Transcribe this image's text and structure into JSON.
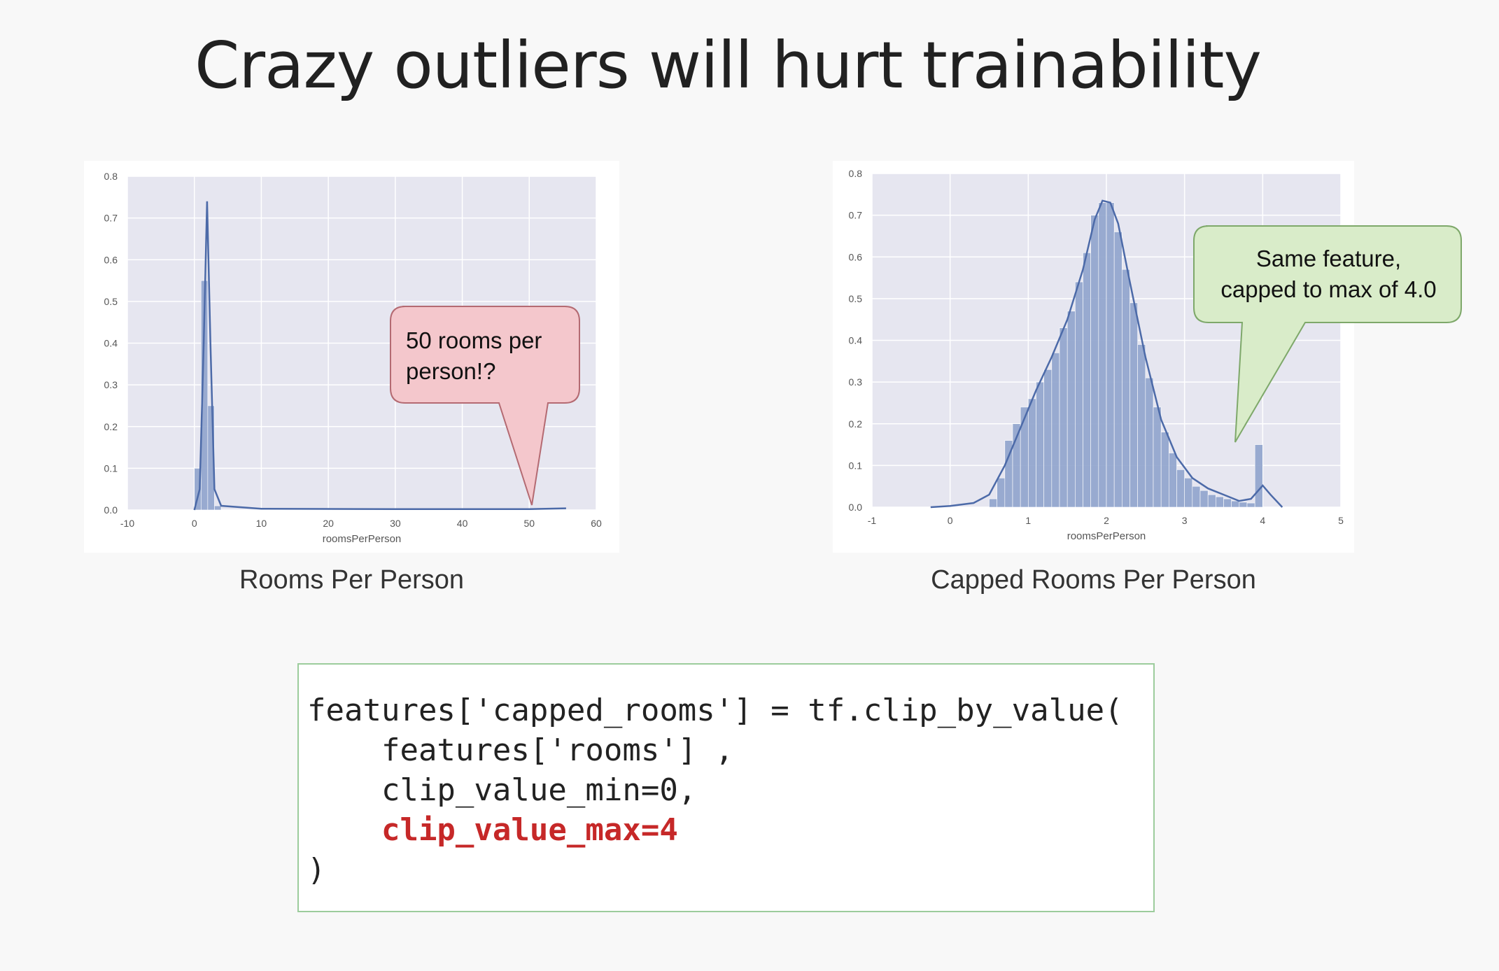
{
  "slide": {
    "title": "Crazy outliers will hurt trainability"
  },
  "charts": {
    "left": {
      "caption": "Rooms Per Person",
      "callout": [
        "50 rooms per",
        "person!?"
      ],
      "callout_color": "#f4c7cc"
    },
    "right": {
      "caption": "Capped Rooms Per Person",
      "callout": [
        "Same feature,",
        "capped to max of 4.0"
      ],
      "callout_color": "#d9ecc9"
    }
  },
  "code": {
    "lines": [
      "features['capped_rooms'] = tf.clip_by_value(",
      "    features['rooms'] ,",
      "    clip_value_min=0,",
      "    clip_value_max=4",
      ")"
    ],
    "highlight_color": "#c62828"
  },
  "colors": {
    "plot_bg": "#e6e6f0",
    "bar": "#8fa3cc",
    "line": "#4c6aa8"
  },
  "chart_data": [
    {
      "type": "bar",
      "xlabel": "roomsPerPerson",
      "ylabel": "",
      "xlim": [
        -10,
        60
      ],
      "ylim": [
        0,
        0.8
      ],
      "xticks": [
        "-10",
        "0",
        "10",
        "20",
        "30",
        "40",
        "50",
        "60"
      ],
      "yticks": [
        "0.0",
        "0.1",
        "0.2",
        "0.3",
        "0.4",
        "0.5",
        "0.6",
        "0.7",
        "0.8"
      ],
      "grid": true,
      "bins": [
        {
          "x0": 0.0,
          "x1": 1.0,
          "y": 0.1
        },
        {
          "x0": 1.0,
          "x1": 2.0,
          "y": 0.55
        },
        {
          "x0": 2.0,
          "x1": 3.0,
          "y": 0.25
        },
        {
          "x0": 3.0,
          "x1": 4.0,
          "y": 0.01
        }
      ],
      "kde": [
        [
          0.0,
          0.0
        ],
        [
          0.8,
          0.05
        ],
        [
          1.4,
          0.4
        ],
        [
          1.9,
          0.74
        ],
        [
          2.4,
          0.4
        ],
        [
          3.0,
          0.05
        ],
        [
          4.0,
          0.01
        ],
        [
          10,
          0.003
        ],
        [
          30,
          0.002
        ],
        [
          50,
          0.002
        ],
        [
          55.5,
          0.004
        ]
      ]
    },
    {
      "type": "bar",
      "xlabel": "roomsPerPerson",
      "ylabel": "",
      "xlim": [
        -1,
        5
      ],
      "ylim": [
        0,
        0.8
      ],
      "xticks": [
        "-1",
        "0",
        "1",
        "2",
        "3",
        "4",
        "5"
      ],
      "yticks": [
        "0.0",
        "0.1",
        "0.2",
        "0.3",
        "0.4",
        "0.5",
        "0.6",
        "0.7",
        "0.8"
      ],
      "grid": true,
      "bins": [
        {
          "x0": 0.5,
          "x1": 0.6,
          "y": 0.02
        },
        {
          "x0": 0.6,
          "x1": 0.7,
          "y": 0.07
        },
        {
          "x0": 0.7,
          "x1": 0.8,
          "y": 0.16
        },
        {
          "x0": 0.8,
          "x1": 0.9,
          "y": 0.2
        },
        {
          "x0": 0.9,
          "x1": 1.0,
          "y": 0.24
        },
        {
          "x0": 1.0,
          "x1": 1.1,
          "y": 0.26
        },
        {
          "x0": 1.1,
          "x1": 1.2,
          "y": 0.3
        },
        {
          "x0": 1.2,
          "x1": 1.3,
          "y": 0.33
        },
        {
          "x0": 1.3,
          "x1": 1.4,
          "y": 0.37
        },
        {
          "x0": 1.4,
          "x1": 1.5,
          "y": 0.43
        },
        {
          "x0": 1.5,
          "x1": 1.6,
          "y": 0.47
        },
        {
          "x0": 1.6,
          "x1": 1.7,
          "y": 0.54
        },
        {
          "x0": 1.7,
          "x1": 1.8,
          "y": 0.61
        },
        {
          "x0": 1.8,
          "x1": 1.9,
          "y": 0.7
        },
        {
          "x0": 1.9,
          "x1": 2.0,
          "y": 0.73
        },
        {
          "x0": 2.0,
          "x1": 2.1,
          "y": 0.73
        },
        {
          "x0": 2.1,
          "x1": 2.2,
          "y": 0.66
        },
        {
          "x0": 2.2,
          "x1": 2.3,
          "y": 0.57
        },
        {
          "x0": 2.3,
          "x1": 2.4,
          "y": 0.49
        },
        {
          "x0": 2.4,
          "x1": 2.5,
          "y": 0.39
        },
        {
          "x0": 2.5,
          "x1": 2.6,
          "y": 0.31
        },
        {
          "x0": 2.6,
          "x1": 2.7,
          "y": 0.24
        },
        {
          "x0": 2.7,
          "x1": 2.8,
          "y": 0.18
        },
        {
          "x0": 2.8,
          "x1": 2.9,
          "y": 0.13
        },
        {
          "x0": 2.9,
          "x1": 3.0,
          "y": 0.09
        },
        {
          "x0": 3.0,
          "x1": 3.1,
          "y": 0.07
        },
        {
          "x0": 3.1,
          "x1": 3.2,
          "y": 0.05
        },
        {
          "x0": 3.2,
          "x1": 3.3,
          "y": 0.04
        },
        {
          "x0": 3.3,
          "x1": 3.4,
          "y": 0.03
        },
        {
          "x0": 3.4,
          "x1": 3.5,
          "y": 0.025
        },
        {
          "x0": 3.5,
          "x1": 3.6,
          "y": 0.02
        },
        {
          "x0": 3.6,
          "x1": 3.7,
          "y": 0.015
        },
        {
          "x0": 3.7,
          "x1": 3.8,
          "y": 0.012
        },
        {
          "x0": 3.8,
          "x1": 3.9,
          "y": 0.01
        },
        {
          "x0": 3.9,
          "x1": 4.0,
          "y": 0.15
        }
      ],
      "kde": [
        [
          -0.25,
          0.0
        ],
        [
          0.0,
          0.003
        ],
        [
          0.3,
          0.01
        ],
        [
          0.5,
          0.03
        ],
        [
          0.7,
          0.1
        ],
        [
          0.9,
          0.19
        ],
        [
          1.1,
          0.28
        ],
        [
          1.3,
          0.36
        ],
        [
          1.5,
          0.45
        ],
        [
          1.7,
          0.57
        ],
        [
          1.85,
          0.69
        ],
        [
          1.95,
          0.735
        ],
        [
          2.05,
          0.73
        ],
        [
          2.15,
          0.68
        ],
        [
          2.3,
          0.54
        ],
        [
          2.5,
          0.36
        ],
        [
          2.7,
          0.21
        ],
        [
          2.9,
          0.12
        ],
        [
          3.1,
          0.07
        ],
        [
          3.3,
          0.045
        ],
        [
          3.5,
          0.03
        ],
        [
          3.7,
          0.015
        ],
        [
          3.85,
          0.02
        ],
        [
          4.0,
          0.052
        ],
        [
          4.1,
          0.03
        ],
        [
          4.25,
          0.0
        ]
      ]
    }
  ]
}
